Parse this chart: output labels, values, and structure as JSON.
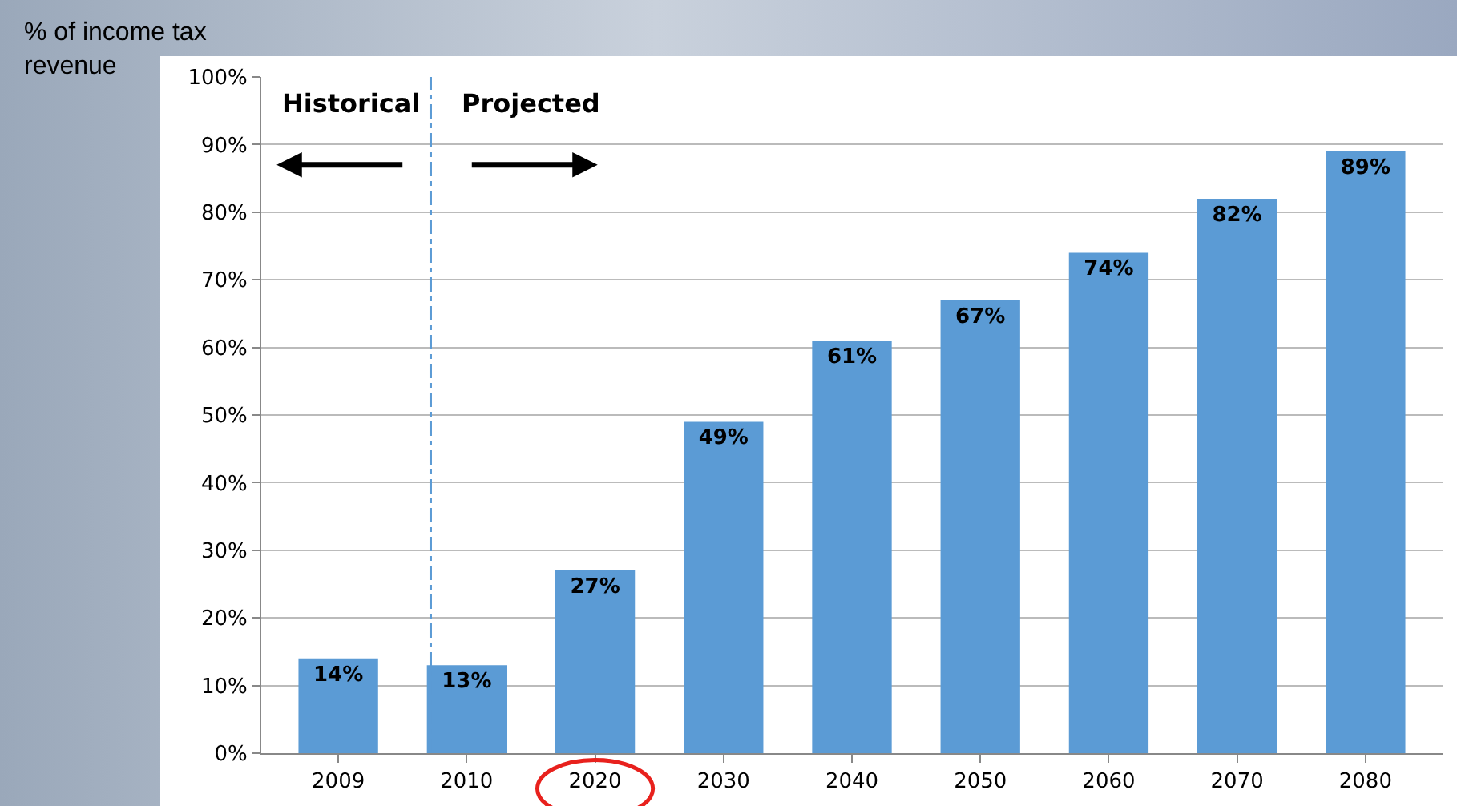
{
  "chart_data": {
    "type": "bar",
    "ylabel": "% of income tax revenue",
    "categories": [
      "2009",
      "2010",
      "2020",
      "2030",
      "2040",
      "2050",
      "2060",
      "2070",
      "2080"
    ],
    "values": [
      14,
      13,
      27,
      49,
      61,
      67,
      74,
      82,
      89
    ],
    "value_labels": [
      "14%",
      "13%",
      "27%",
      "49%",
      "61%",
      "67%",
      "74%",
      "82%",
      "89%"
    ],
    "color": "#5b9bd5",
    "ylim": [
      0,
      100
    ],
    "yticks": [
      {
        "value": 0,
        "label": "0%"
      },
      {
        "value": 10,
        "label": "10%"
      },
      {
        "value": 20,
        "label": "20%"
      },
      {
        "value": 30,
        "label": "30%"
      },
      {
        "value": 40,
        "label": "40%"
      },
      {
        "value": 50,
        "label": "50%"
      },
      {
        "value": 60,
        "label": "60%"
      },
      {
        "value": 70,
        "label": "70%"
      },
      {
        "value": 80,
        "label": "80%"
      },
      {
        "value": 90,
        "label": "90%"
      },
      {
        "value": 100,
        "label": "100%"
      }
    ],
    "grid": "y",
    "ref_lines": [
      {
        "axis": "x",
        "value": "2010",
        "color": "#5b9bd5",
        "line_style": "dashed"
      }
    ],
    "annotations": [
      "Historical",
      "Projected"
    ]
  }
}
